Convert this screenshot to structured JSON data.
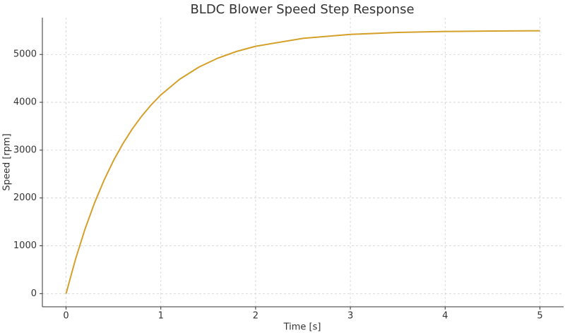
{
  "chart_data": {
    "type": "line",
    "title": "BLDC Blower Speed Step Response",
    "x_label": "Time [s]",
    "y_label": "Speed [rpm]",
    "x": [
      0,
      0.1,
      0.2,
      0.3,
      0.4,
      0.5,
      0.6,
      0.7,
      0.8,
      0.9,
      1.0,
      1.2,
      1.4,
      1.6,
      1.8,
      2.0,
      2.5,
      3.0,
      3.5,
      4.0,
      4.5,
      5.0
    ],
    "series": [
      {
        "name": "Speed",
        "color": "#d4a02a",
        "values": [
          0,
          722,
          1350,
          1895,
          2368,
          2780,
          3137,
          3447,
          3716,
          3951,
          4154,
          4484,
          4734,
          4922,
          5064,
          5171,
          5337,
          5419,
          5460,
          5480,
          5490,
          5495
        ]
      }
    ],
    "xlim": [
      -0.25,
      5.25
    ],
    "xticks": [
      0,
      1,
      2,
      3,
      4,
      5
    ],
    "ylim": [
      -275,
      5770
    ],
    "yticks": [
      0,
      1000,
      2000,
      3000,
      4000,
      5000
    ],
    "grid": true
  }
}
